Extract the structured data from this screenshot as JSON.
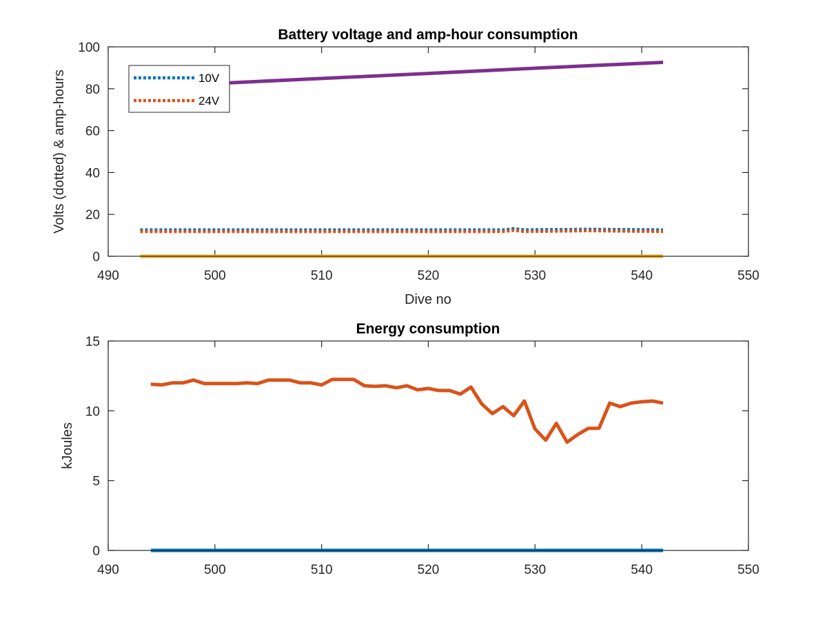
{
  "chart_data": [
    {
      "type": "line",
      "title": "Battery voltage and amp-hour consumption",
      "xlabel": "Dive no",
      "ylabel": "Volts (dotted) & amp-hours",
      "xlim": [
        490,
        550
      ],
      "ylim": [
        0,
        100
      ],
      "xticks": [
        490,
        500,
        510,
        520,
        530,
        540,
        550
      ],
      "yticks": [
        0,
        20,
        40,
        60,
        80,
        100
      ],
      "xtick_labels": [
        "490",
        "500",
        "510",
        "520",
        "530",
        "540",
        "550"
      ],
      "ytick_labels": [
        "0",
        "20",
        "40",
        "60",
        "80",
        "100"
      ],
      "grid": false,
      "legend_position": "top-left",
      "series": [
        {
          "name": "10V",
          "color": "#0072BD",
          "style": "dotted",
          "x": [
            493,
            500,
            510,
            520,
            527,
            528,
            529,
            535,
            542
          ],
          "y": [
            12.6,
            12.6,
            12.6,
            12.6,
            12.6,
            13.2,
            12.6,
            12.9,
            12.6
          ]
        },
        {
          "name": "24V",
          "color": "#D95319",
          "style": "dotted",
          "x": [
            493,
            500,
            510,
            520,
            527,
            528,
            529,
            535,
            542
          ],
          "y": [
            11.8,
            11.8,
            11.8,
            11.8,
            11.8,
            12.4,
            11.8,
            12.2,
            11.8
          ]
        },
        {
          "color": "#EDB120",
          "style": "solid",
          "x": [
            493,
            542
          ],
          "y": [
            0,
            0
          ]
        },
        {
          "color": "#7E2F8E",
          "style": "solid",
          "x": [
            493,
            500,
            510,
            520,
            530,
            542
          ],
          "y": [
            81.5,
            82.5,
            84.9,
            87.3,
            89.8,
            92.6
          ]
        }
      ]
    },
    {
      "type": "line",
      "title": "Energy consumption",
      "xlabel": "",
      "ylabel": "kJoules",
      "xlim": [
        490,
        550
      ],
      "ylim": [
        0,
        15
      ],
      "xticks": [
        490,
        500,
        510,
        520,
        530,
        540,
        550
      ],
      "yticks": [
        0,
        5,
        10,
        15
      ],
      "xtick_labels": [
        "490",
        "500",
        "510",
        "520",
        "530",
        "540",
        "550"
      ],
      "ytick_labels": [
        "0",
        "5",
        "10",
        "15"
      ],
      "grid": false,
      "series": [
        {
          "color": "#0072BD",
          "style": "solid",
          "x": [
            494,
            542
          ],
          "y": [
            0,
            0
          ]
        },
        {
          "color": "#D95319",
          "style": "solid",
          "x": [
            494,
            495,
            496,
            497,
            498,
            499,
            500,
            501,
            502,
            503,
            504,
            505,
            506,
            507,
            508,
            509,
            510,
            511,
            512,
            513,
            514,
            515,
            516,
            517,
            518,
            519,
            520,
            521,
            522,
            523,
            524,
            525,
            526,
            527,
            528,
            529,
            530,
            531,
            532,
            533,
            534,
            535,
            536,
            537,
            538,
            539,
            540,
            541,
            542
          ],
          "y": [
            11.9,
            11.85,
            12.0,
            12.0,
            12.2,
            11.95,
            11.95,
            11.95,
            11.95,
            12.0,
            11.95,
            12.2,
            12.2,
            12.2,
            12.0,
            12.0,
            11.85,
            12.25,
            12.25,
            12.25,
            11.8,
            11.75,
            11.8,
            11.65,
            11.8,
            11.5,
            11.6,
            11.45,
            11.45,
            11.2,
            11.7,
            10.5,
            9.8,
            10.3,
            9.65,
            10.7,
            8.7,
            7.9,
            9.1,
            7.75,
            8.3,
            8.75,
            8.75,
            10.55,
            10.3,
            10.55,
            10.65,
            10.7,
            10.55
          ]
        }
      ]
    }
  ]
}
